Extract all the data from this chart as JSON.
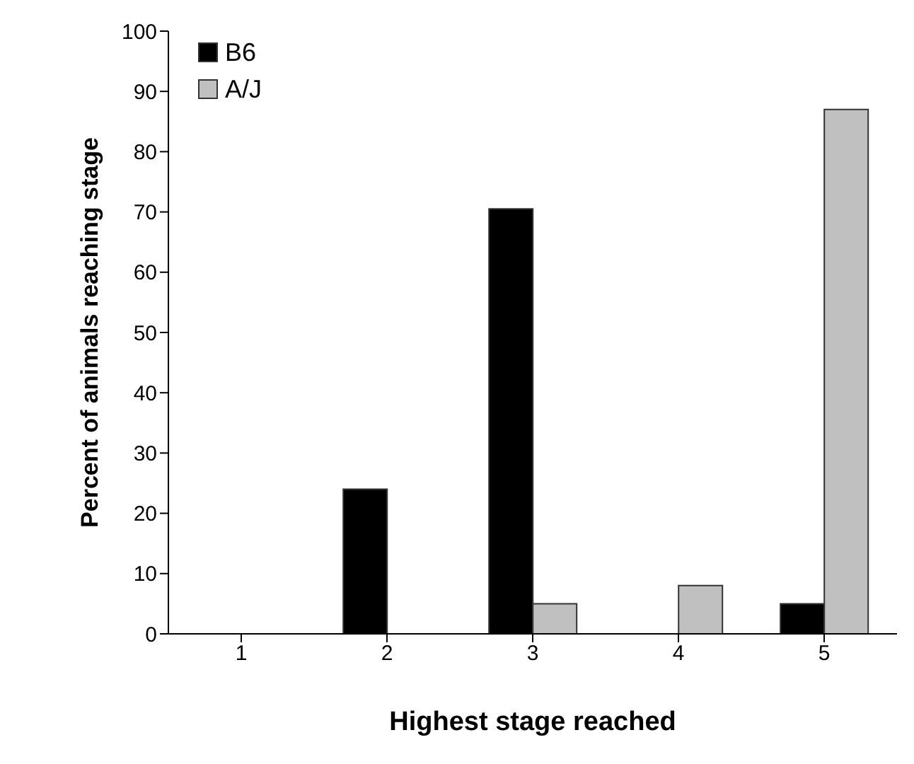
{
  "chart_data": {
    "type": "bar",
    "xlabel": "Highest stage reached",
    "ylabel": "Percent of animals reaching stage",
    "categories": [
      "1",
      "2",
      "3",
      "4",
      "5"
    ],
    "series": [
      {
        "name": "B6",
        "color": "#000000",
        "values": [
          0,
          24,
          70.5,
          0,
          5
        ]
      },
      {
        "name": "A/J",
        "color": "#c0c0c0",
        "values": [
          0,
          0,
          5,
          8,
          87
        ]
      }
    ],
    "ylim": [
      0,
      100
    ],
    "yticks": [
      0,
      10,
      20,
      30,
      40,
      50,
      60,
      70,
      80,
      90,
      100
    ],
    "grid": false,
    "legend": "top left"
  }
}
